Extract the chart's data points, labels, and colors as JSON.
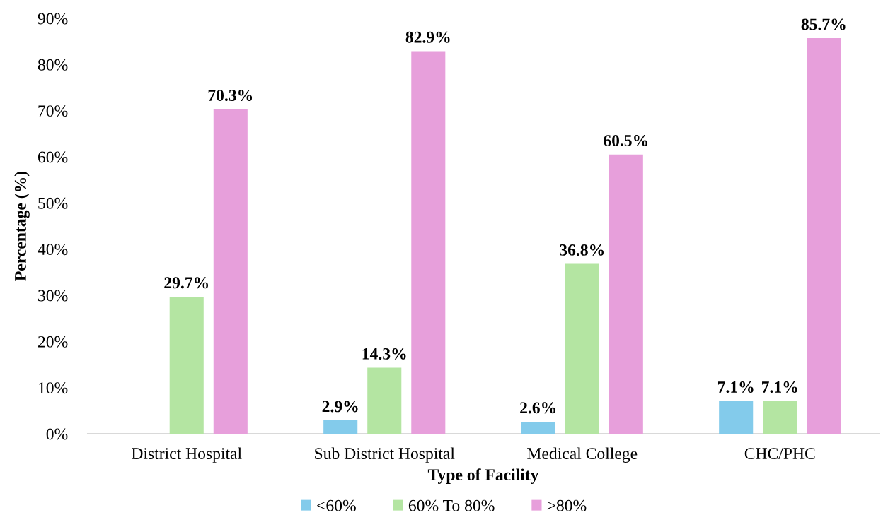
{
  "chart_data": {
    "type": "bar",
    "xlabel": "Type of Facility",
    "ylabel": "Percentage (%)",
    "categories": [
      "District Hospital",
      "Sub District Hospital",
      "Medical College",
      "CHC/PHC"
    ],
    "series": [
      {
        "name": "<60%",
        "color": "#83cbeb",
        "values": [
          null,
          2.9,
          2.6,
          7.1
        ],
        "value_labels": [
          null,
          "2.9%",
          "2.6%",
          "7.1%"
        ]
      },
      {
        "name": "60% To 80%",
        "color": "#b4e5a2",
        "values": [
          29.7,
          14.3,
          36.8,
          7.1
        ],
        "value_labels": [
          "29.7%",
          "14.3%",
          "36.8%",
          "7.1%"
        ]
      },
      {
        "name": ">80%",
        "color": "#e79fdb",
        "values": [
          70.3,
          82.9,
          60.5,
          85.7
        ],
        "value_labels": [
          "70.3%",
          "82.9%",
          "60.5%",
          "85.7%"
        ]
      }
    ],
    "ylim": [
      0,
      90
    ],
    "yticks": [
      {
        "value": 0,
        "label": "0%"
      },
      {
        "value": 10,
        "label": "10%"
      },
      {
        "value": 20,
        "label": "20%"
      },
      {
        "value": 30,
        "label": "30%"
      },
      {
        "value": 40,
        "label": "40%"
      },
      {
        "value": 50,
        "label": "50%"
      },
      {
        "value": 60,
        "label": "60%"
      },
      {
        "value": 70,
        "label": "70%"
      },
      {
        "value": 80,
        "label": "80%"
      },
      {
        "value": 90,
        "label": "90%"
      }
    ],
    "grid": false,
    "legend": "bottom"
  }
}
